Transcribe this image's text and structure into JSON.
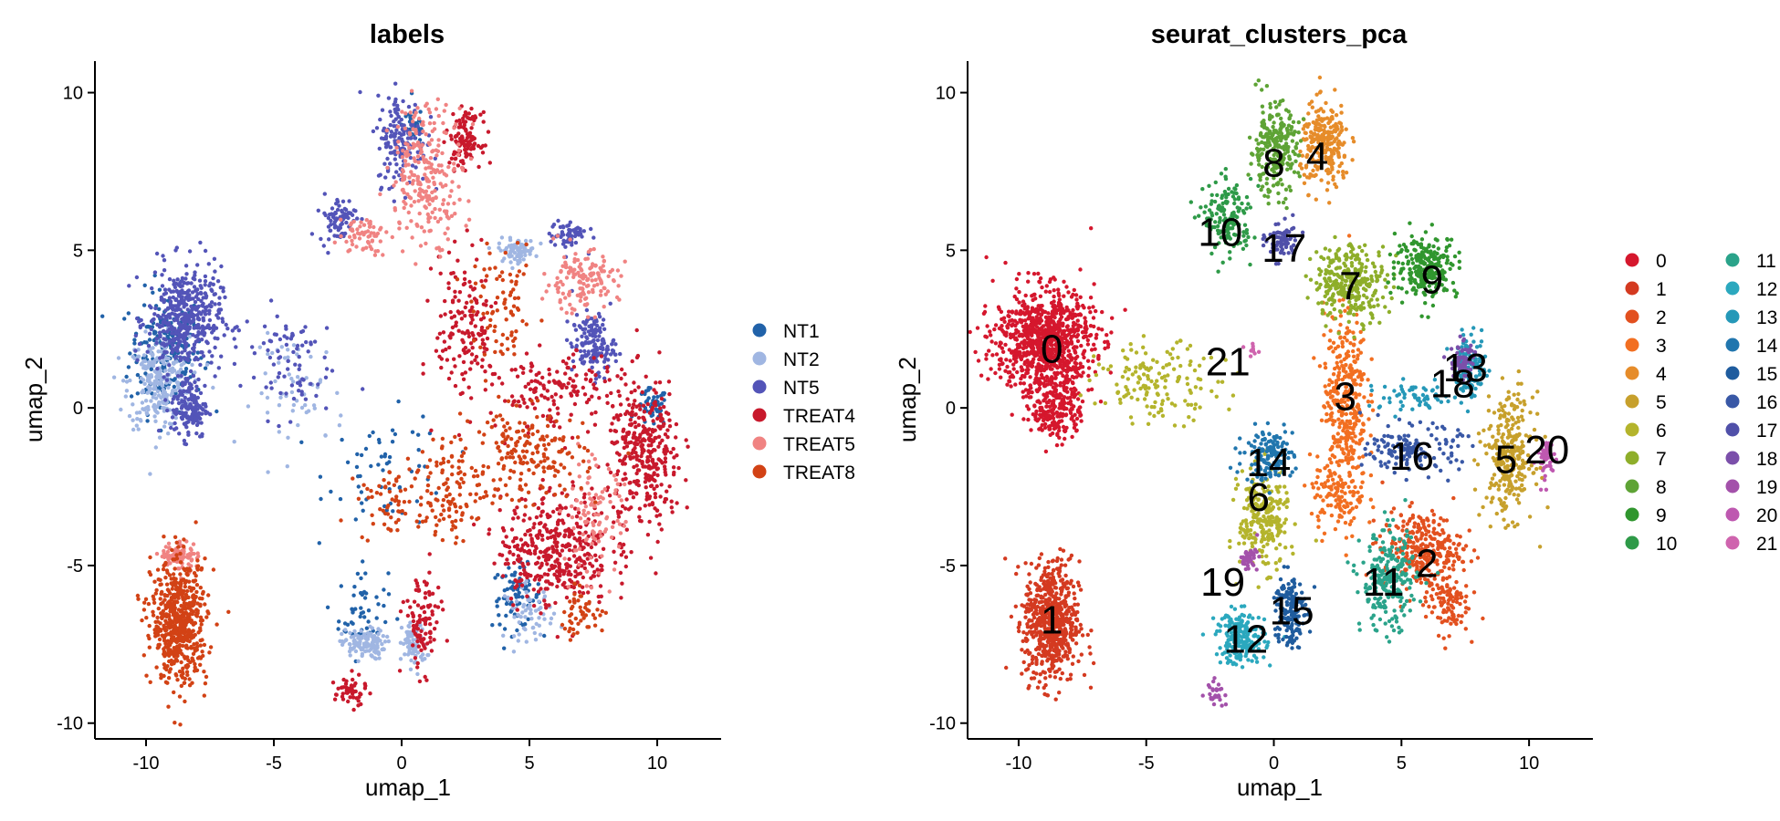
{
  "chart_data": [
    {
      "type": "scatter",
      "title": "labels",
      "xlabel": "umap_1",
      "ylabel": "umap_2",
      "xlim": [
        -12,
        12.5
      ],
      "ylim": [
        -10.5,
        11
      ],
      "xticks": [
        -10,
        -5,
        0,
        5,
        10
      ],
      "yticks": [
        -10,
        -5,
        0,
        5,
        10
      ],
      "grid": false,
      "legend": "right",
      "series": [
        {
          "name": "NT1",
          "color": "#2162A9",
          "regions": [
            [
              -9.2,
              1.8,
              1.2,
              1.6,
              200
            ],
            [
              -1.5,
              -6.5,
              0.8,
              1.2,
              60
            ],
            [
              4.5,
              -6.0,
              0.8,
              0.8,
              80
            ],
            [
              0.5,
              9.0,
              0.4,
              0.5,
              40
            ],
            [
              9.8,
              0,
              0.5,
              0.5,
              50
            ],
            [
              -0.5,
              -2.0,
              2.0,
              1.5,
              60
            ]
          ]
        },
        {
          "name": "NT2",
          "color": "#A0B6E2",
          "regions": [
            [
              -9.5,
              0.8,
              1.0,
              1.2,
              250
            ],
            [
              -1.5,
              -7.5,
              0.7,
              0.4,
              120
            ],
            [
              0.5,
              -7.5,
              0.4,
              0.6,
              80
            ],
            [
              4.5,
              5.0,
              0.6,
              0.3,
              80
            ],
            [
              -4.0,
              0.5,
              1.5,
              1.5,
              60
            ],
            [
              5.0,
              -6.5,
              0.8,
              0.7,
              60
            ]
          ]
        },
        {
          "name": "NT5",
          "color": "#5354B8",
          "regions": [
            [
              -8.5,
              2.8,
              1.2,
              1.4,
              450
            ],
            [
              -8.3,
              0,
              0.6,
              0.8,
              150
            ],
            [
              0,
              8.5,
              0.8,
              1.2,
              160
            ],
            [
              -2.5,
              6.0,
              0.6,
              0.6,
              80
            ],
            [
              7.5,
              2.0,
              0.7,
              0.8,
              150
            ],
            [
              6.5,
              5.5,
              0.6,
              0.4,
              60
            ],
            [
              -4.5,
              1.5,
              1.5,
              1.5,
              80
            ]
          ]
        },
        {
          "name": "TREAT4",
          "color": "#C8192C",
          "regions": [
            [
              6.0,
              -4.5,
              1.8,
              1.5,
              400
            ],
            [
              9.5,
              -1.5,
              1.2,
              2.0,
              350
            ],
            [
              2.5,
              8.5,
              0.5,
              0.7,
              120
            ],
            [
              0.8,
              -6.8,
              0.6,
              1.3,
              100
            ],
            [
              2.5,
              2.5,
              1.0,
              2.0,
              160
            ],
            [
              -2.0,
              -9.0,
              0.5,
              0.4,
              50
            ],
            [
              6.0,
              0.5,
              2.0,
              1.0,
              150
            ]
          ]
        },
        {
          "name": "TREAT5",
          "color": "#F08382",
          "regions": [
            [
              1.0,
              7.5,
              1.2,
              1.8,
              250
            ],
            [
              -8.7,
              -4.7,
              0.6,
              0.4,
              90
            ],
            [
              -1.5,
              5.5,
              0.8,
              0.5,
              60
            ],
            [
              7.0,
              4.0,
              1.2,
              0.8,
              150
            ],
            [
              7.5,
              -3.5,
              1.0,
              1.5,
              100
            ]
          ]
        },
        {
          "name": "TREAT8",
          "color": "#D24215",
          "regions": [
            [
              -8.7,
              -6.8,
              0.9,
              1.6,
              600
            ],
            [
              5.0,
              -1.5,
              1.8,
              1.2,
              180
            ],
            [
              2.0,
              -2.5,
              1.2,
              1.5,
              120
            ],
            [
              4.0,
              3.0,
              1.0,
              1.5,
              80
            ],
            [
              7.0,
              -6.5,
              0.8,
              0.6,
              50
            ],
            [
              -0.5,
              -3.0,
              1.0,
              1.0,
              60
            ]
          ]
        }
      ]
    },
    {
      "type": "scatter",
      "title": "seurat_clusters_pca",
      "xlabel": "umap_1",
      "ylabel": "umap_2",
      "xlim": [
        -12,
        12.5
      ],
      "ylim": [
        -10.5,
        11
      ],
      "xticks": [
        -10,
        -5,
        0,
        5,
        10
      ],
      "yticks": [
        -10,
        -5,
        0,
        5,
        10
      ],
      "grid": false,
      "legend": "right",
      "series": [
        {
          "name": "0",
          "color": "#D5172D",
          "label_pos": [
            -8.7,
            1.9
          ],
          "regions": [
            [
              -9.0,
              2.1,
              1.6,
              1.4,
              900
            ],
            [
              -8.5,
              0,
              0.8,
              0.9,
              200
            ]
          ]
        },
        {
          "name": "1",
          "color": "#D43A20",
          "label_pos": [
            -8.7,
            -6.7
          ],
          "regions": [
            [
              -8.7,
              -6.8,
              0.9,
              1.6,
              650
            ]
          ]
        },
        {
          "name": "2",
          "color": "#E2501F",
          "label_pos": [
            6.0,
            -4.9
          ],
          "regions": [
            [
              5.8,
              -4.5,
              1.3,
              1.0,
              300
            ],
            [
              6.8,
              -6.2,
              0.7,
              0.8,
              100
            ]
          ]
        },
        {
          "name": "3",
          "color": "#F26F21",
          "label_pos": [
            2.8,
            0.4
          ],
          "regions": [
            [
              2.8,
              0.3,
              0.7,
              2.4,
              350
            ],
            [
              2.5,
              -2.8,
              0.9,
              1.0,
              120
            ]
          ]
        },
        {
          "name": "4",
          "color": "#E68C2A",
          "label_pos": [
            1.7,
            8.0
          ],
          "regions": [
            [
              2.0,
              8.3,
              0.8,
              1.1,
              250
            ]
          ]
        },
        {
          "name": "5",
          "color": "#C7A02C",
          "label_pos": [
            9.1,
            -1.6
          ],
          "regions": [
            [
              9.2,
              -1.5,
              0.8,
              1.6,
              300
            ]
          ]
        },
        {
          "name": "6",
          "color": "#B4B42C",
          "label_pos": [
            -0.6,
            -2.8
          ],
          "regions": [
            [
              -0.4,
              -3.5,
              0.8,
              1.3,
              250
            ],
            [
              -4.5,
              0.8,
              2.0,
              1.0,
              150
            ]
          ]
        },
        {
          "name": "7",
          "color": "#8EAE2A",
          "label_pos": [
            3.0,
            3.9
          ],
          "regions": [
            [
              3.0,
              4.0,
              1.2,
              1.0,
              300
            ]
          ]
        },
        {
          "name": "8",
          "color": "#5EA335",
          "label_pos": [
            0.0,
            7.8
          ],
          "regions": [
            [
              0.0,
              8.2,
              0.8,
              1.2,
              250
            ]
          ]
        },
        {
          "name": "9",
          "color": "#30962E",
          "label_pos": [
            6.2,
            4.1
          ],
          "regions": [
            [
              6.0,
              4.5,
              1.0,
              0.8,
              250
            ]
          ]
        },
        {
          "name": "10",
          "color": "#2E9A48",
          "label_pos": [
            -2.1,
            5.6
          ],
          "regions": [
            [
              -1.8,
              6.0,
              0.8,
              1.0,
              150
            ]
          ]
        },
        {
          "name": "11",
          "color": "#2AA38A",
          "label_pos": [
            4.3,
            -5.5
          ],
          "regions": [
            [
              4.5,
              -5.5,
              0.9,
              1.3,
              250
            ]
          ]
        },
        {
          "name": "12",
          "color": "#2BA8BE",
          "label_pos": [
            -1.1,
            -7.3
          ],
          "regions": [
            [
              -1.3,
              -7.3,
              0.8,
              0.7,
              200
            ]
          ]
        },
        {
          "name": "13",
          "color": "#2598B8",
          "label_pos": [
            7.5,
            1.3
          ],
          "regions": [
            [
              7.7,
              1.3,
              0.5,
              0.8,
              120
            ],
            [
              5.5,
              0.3,
              1.5,
              0.4,
              60
            ]
          ]
        },
        {
          "name": "14",
          "color": "#2176AE",
          "label_pos": [
            -0.2,
            -1.7
          ],
          "regions": [
            [
              -0.2,
              -1.5,
              0.8,
              0.7,
              150
            ]
          ]
        },
        {
          "name": "15",
          "color": "#1F5C9E",
          "label_pos": [
            0.7,
            -6.4
          ],
          "regions": [
            [
              0.6,
              -6.4,
              0.5,
              1.0,
              180
            ]
          ]
        },
        {
          "name": "16",
          "color": "#3958A6",
          "label_pos": [
            5.4,
            -1.5
          ],
          "regions": [
            [
              5.5,
              -1.3,
              1.5,
              0.6,
              150
            ]
          ]
        },
        {
          "name": "17",
          "color": "#5050A9",
          "label_pos": [
            0.4,
            5.1
          ],
          "regions": [
            [
              0.3,
              5.3,
              0.5,
              0.5,
              80
            ]
          ]
        },
        {
          "name": "18",
          "color": "#7B4FAA",
          "label_pos": [
            7.0,
            0.8
          ],
          "regions": [
            [
              7.4,
              1.5,
              0.4,
              0.5,
              60
            ]
          ]
        },
        {
          "name": "19",
          "color": "#A351AA",
          "label_pos": [
            -2.0,
            -5.5
          ],
          "regions": [
            [
              -1.0,
              -4.8,
              0.3,
              0.3,
              40
            ],
            [
              -2.3,
              -9.0,
              0.3,
              0.3,
              30
            ]
          ]
        },
        {
          "name": "20",
          "color": "#BE58B0",
          "label_pos": [
            10.7,
            -1.3
          ],
          "regions": [
            [
              10.7,
              -1.6,
              0.3,
              0.6,
              50
            ]
          ]
        },
        {
          "name": "21",
          "color": "#CF64AE",
          "label_pos": [
            -1.8,
            1.5
          ],
          "regions": [
            [
              -0.9,
              1.8,
              0.2,
              0.2,
              10
            ]
          ]
        }
      ]
    }
  ]
}
